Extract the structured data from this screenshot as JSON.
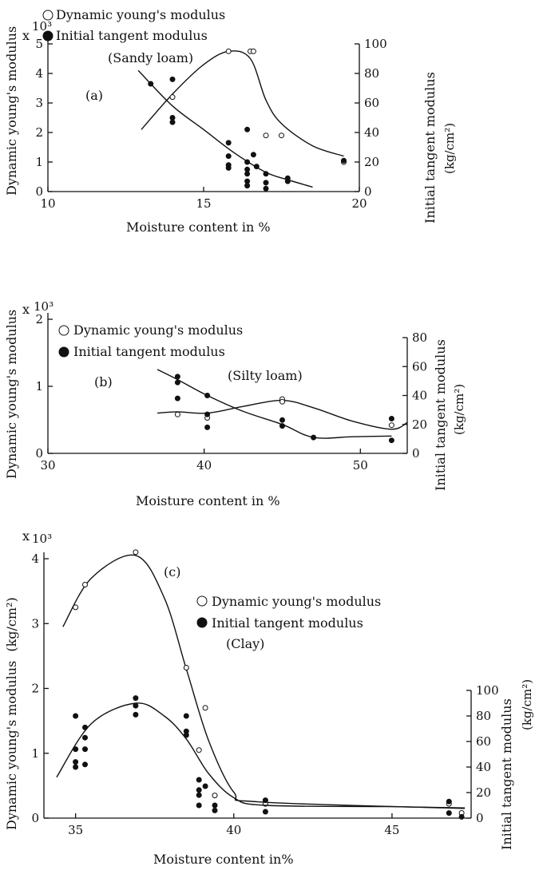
{
  "chart_data": [
    {
      "type": "scatter",
      "panel_label": "(a)",
      "soil": "(Sandy loam)",
      "xlabel": "Moisture content in %",
      "ylabel_left": "Dynamic young's modulus",
      "ylabel_right": "Initial tangent modulus",
      "ylabel_right_unit": "(kg/cm²)",
      "left_multiplier_x": "x",
      "left_multiplier_exp": "10³",
      "xlim": [
        10,
        20
      ],
      "ylim_left": [
        0,
        5
      ],
      "ylim_right": [
        0,
        100
      ],
      "x_ticks": [
        10,
        15,
        20
      ],
      "left_ticks": [
        0,
        1,
        2,
        3,
        4,
        5
      ],
      "right_ticks": [
        0,
        20,
        40,
        60,
        80,
        100
      ],
      "legend": [
        {
          "marker": "open",
          "label": "Dynamic young's modulus"
        },
        {
          "marker": "solid",
          "label": "Initial tangent modulus"
        }
      ],
      "series": [
        {
          "marker": "open",
          "axis": "left",
          "points": [
            [
              14,
              3.2
            ],
            [
              15.8,
              4.75
            ],
            [
              16.5,
              4.75
            ],
            [
              16.6,
              4.75
            ],
            [
              17,
              1.9
            ],
            [
              17.5,
              1.9
            ],
            [
              19.5,
              1.0
            ]
          ],
          "curve": [
            [
              13,
              2.1
            ],
            [
              14,
              3.3
            ],
            [
              15,
              4.3
            ],
            [
              15.8,
              4.75
            ],
            [
              16.5,
              4.5
            ],
            [
              17,
              3.1
            ],
            [
              17.5,
              2.3
            ],
            [
              18.5,
              1.55
            ],
            [
              19.5,
              1.2
            ]
          ]
        },
        {
          "marker": "solid",
          "axis": "right",
          "points": [
            [
              13.3,
              73
            ],
            [
              14,
              76
            ],
            [
              14,
              50
            ],
            [
              14,
              47
            ],
            [
              15.8,
              33
            ],
            [
              15.8,
              24
            ],
            [
              15.8,
              18
            ],
            [
              15.8,
              16
            ],
            [
              16.4,
              42
            ],
            [
              16.4,
              20
            ],
            [
              16.4,
              15
            ],
            [
              16.4,
              12
            ],
            [
              16.4,
              7
            ],
            [
              16.4,
              4
            ],
            [
              16.6,
              25
            ],
            [
              16.7,
              17
            ],
            [
              17,
              12
            ],
            [
              17,
              6
            ],
            [
              17,
              2
            ],
            [
              17.7,
              9
            ],
            [
              17.7,
              7
            ],
            [
              19.5,
              21
            ]
          ],
          "curve": [
            [
              12.9,
              82
            ],
            [
              14,
              58
            ],
            [
              15,
              42
            ],
            [
              16,
              26
            ],
            [
              17,
              13
            ],
            [
              17.7,
              8
            ],
            [
              18.5,
              3
            ]
          ]
        }
      ]
    },
    {
      "type": "scatter",
      "panel_label": "(b)",
      "soil": "(Silty loam)",
      "xlabel": "Moisture content in %",
      "ylabel_left": "Dynamic young's modulus",
      "ylabel_right": "Initial tangent modulus",
      "ylabel_right_unit": "(kg/cm²)",
      "left_multiplier_x": "x",
      "left_multiplier_exp": "10³",
      "xlim": [
        30,
        53
      ],
      "ylim_left": [
        0,
        2
      ],
      "ylim_right": [
        0,
        80
      ],
      "x_ticks": [
        30,
        40,
        50
      ],
      "left_ticks": [
        0,
        1,
        2
      ],
      "right_ticks": [
        0,
        20,
        40,
        60,
        80
      ],
      "legend": [
        {
          "marker": "open",
          "label": "Dynamic young's modulus"
        },
        {
          "marker": "solid",
          "label": "Initial tangent modulus"
        }
      ],
      "series": [
        {
          "marker": "open",
          "axis": "left",
          "points": [
            [
              38.3,
              0.58
            ],
            [
              40.2,
              0.53
            ],
            [
              45,
              0.81
            ],
            [
              45,
              0.77
            ],
            [
              52,
              0.42
            ]
          ],
          "curve": [
            [
              37,
              0.6
            ],
            [
              38.3,
              0.62
            ],
            [
              40.2,
              0.6
            ],
            [
              42.5,
              0.7
            ],
            [
              45,
              0.79
            ],
            [
              47,
              0.68
            ],
            [
              49.5,
              0.48
            ],
            [
              52,
              0.36
            ],
            [
              53,
              0.46
            ]
          ]
        },
        {
          "marker": "solid",
          "axis": "right",
          "points": [
            [
              38.3,
              53
            ],
            [
              38.3,
              49
            ],
            [
              38.3,
              38
            ],
            [
              40.2,
              40
            ],
            [
              40.2,
              27
            ],
            [
              40.2,
              18
            ],
            [
              45,
              23
            ],
            [
              45,
              19
            ],
            [
              47,
              11
            ],
            [
              52,
              24
            ],
            [
              52,
              9
            ]
          ],
          "curve": [
            [
              37,
              58
            ],
            [
              38.3,
              51
            ],
            [
              40.2,
              40
            ],
            [
              42.5,
              29
            ],
            [
              45,
              20
            ],
            [
              47,
              11
            ],
            [
              49.5,
              11.5
            ],
            [
              52,
              12
            ]
          ]
        }
      ]
    },
    {
      "type": "scatter",
      "panel_label": "(c)",
      "soil": "(Clay)",
      "xlabel": "Moisture content in%",
      "ylabel_left": "Dynamic young's modulus",
      "ylabel_left_unit": "(kg/cm²)",
      "ylabel_right": "Initial tangent modulus",
      "ylabel_right_unit": "(kg/cm²)",
      "left_multiplier_x": "x",
      "left_multiplier_exp": "10³",
      "xlim": [
        34,
        47.5
      ],
      "ylim_left": [
        0,
        4
      ],
      "ylim_right": [
        0,
        100
      ],
      "x_ticks": [
        35,
        40,
        45
      ],
      "left_ticks": [
        0,
        1,
        2,
        3,
        4
      ],
      "right_ticks": [
        0,
        20,
        40,
        60,
        80,
        100
      ],
      "legend": [
        {
          "marker": "open",
          "label": "Dynamic young's modulus"
        },
        {
          "marker": "solid",
          "label": "Initial tangent modulus"
        }
      ],
      "series": [
        {
          "marker": "open",
          "axis": "left",
          "points": [
            [
              35,
              3.25
            ],
            [
              35.3,
              3.6
            ],
            [
              36.9,
              4.1
            ],
            [
              38.5,
              2.32
            ],
            [
              38.9,
              1.05
            ],
            [
              39.1,
              1.7
            ],
            [
              39.4,
              0.35
            ],
            [
              41,
              0.22
            ],
            [
              46.8,
              0.22
            ],
            [
              47.2,
              0.08
            ]
          ],
          "curve": [
            [
              34.6,
              2.95
            ],
            [
              35.5,
              3.7
            ],
            [
              36.9,
              4.05
            ],
            [
              37.8,
              3.4
            ],
            [
              38.5,
              2.3
            ],
            [
              39.2,
              1.2
            ],
            [
              40,
              0.4
            ],
            [
              40.8,
              0.25
            ],
            [
              47.3,
              0.15
            ]
          ]
        },
        {
          "marker": "solid",
          "axis": "right",
          "points": [
            [
              35,
              80
            ],
            [
              35,
              54
            ],
            [
              35,
              44
            ],
            [
              35,
              40
            ],
            [
              35.3,
              71
            ],
            [
              35.3,
              63
            ],
            [
              35.3,
              54
            ],
            [
              35.3,
              42
            ],
            [
              36.9,
              94
            ],
            [
              36.9,
              88
            ],
            [
              36.9,
              81
            ],
            [
              38.5,
              80
            ],
            [
              38.5,
              68
            ],
            [
              38.5,
              65
            ],
            [
              38.9,
              30
            ],
            [
              38.9,
              22
            ],
            [
              38.9,
              18
            ],
            [
              38.9,
              10
            ],
            [
              39.1,
              25
            ],
            [
              39.4,
              10
            ],
            [
              39.4,
              6
            ],
            [
              41,
              14
            ],
            [
              41,
              5
            ],
            [
              46.8,
              13
            ],
            [
              46.8,
              4
            ],
            [
              47.2,
              1
            ]
          ],
          "curve": [
            [
              34.4,
              32
            ],
            [
              35.5,
              74
            ],
            [
              36.9,
              90
            ],
            [
              37.8,
              80
            ],
            [
              38.5,
              62
            ],
            [
              39.2,
              35
            ],
            [
              40,
              16
            ],
            [
              41,
              10
            ],
            [
              45,
              9
            ],
            [
              47.3,
              8
            ]
          ]
        }
      ]
    }
  ]
}
